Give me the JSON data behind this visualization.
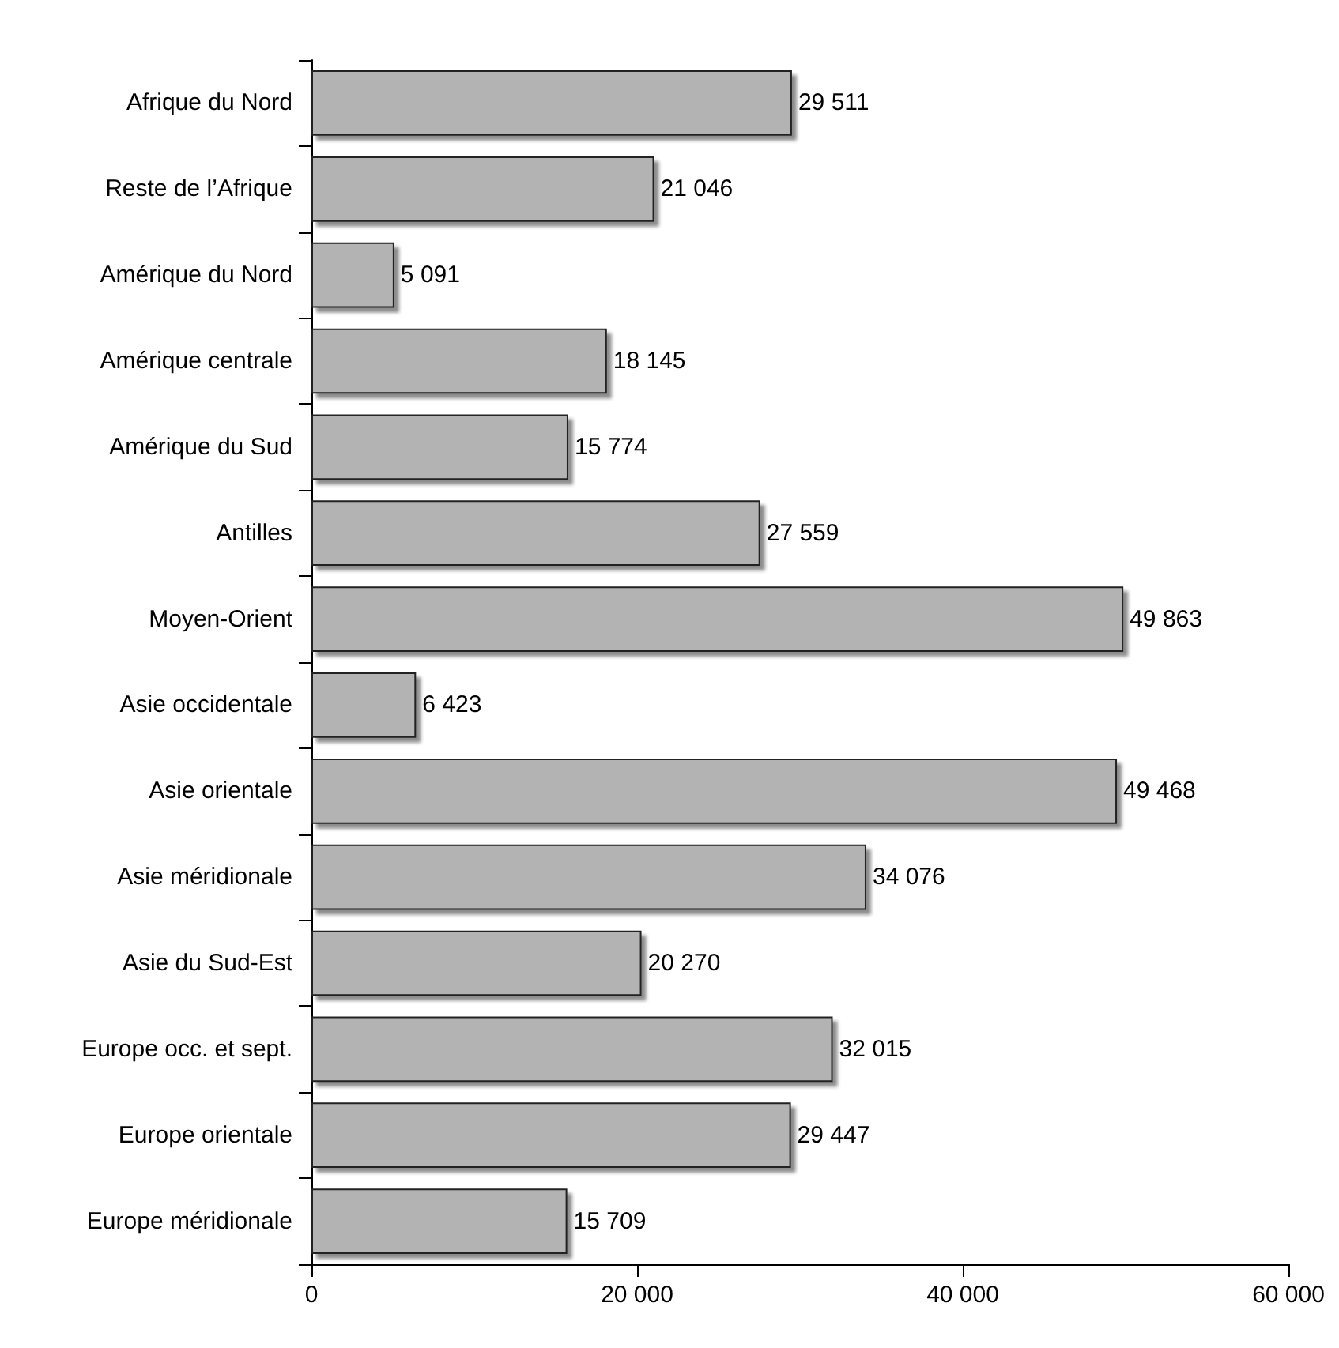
{
  "chart_data": {
    "type": "bar",
    "orientation": "horizontal",
    "categories": [
      "Afrique du Nord",
      "Reste de l’Afrique",
      "Amérique du Nord",
      "Amérique centrale",
      "Amérique du Sud",
      "Antilles",
      "Moyen-Orient",
      "Asie occidentale",
      "Asie orientale",
      "Asie méridionale",
      "Asie du Sud-Est",
      "Europe occ. et sept.",
      "Europe orientale",
      "Europe méridionale"
    ],
    "values": [
      29511,
      21046,
      5091,
      18145,
      15774,
      27559,
      49863,
      6423,
      49468,
      34076,
      20270,
      32015,
      29447,
      15709
    ],
    "value_labels": [
      "29 511",
      "21 046",
      "5 091",
      "18 145",
      "15 774",
      "27 559",
      "49 863",
      "6 423",
      "49 468",
      "34 076",
      "20 270",
      "32 015",
      "29 447",
      "15 709"
    ],
    "color": "#b3b3b3",
    "xlim": [
      0,
      60000
    ],
    "xticks": [
      0,
      {
        "value": 20000,
        "label": "20 000"
      },
      {
        "value": 40000,
        "label": "40 000"
      },
      {
        "value": 60000,
        "label": "60 000"
      }
    ],
    "grid": false
  }
}
